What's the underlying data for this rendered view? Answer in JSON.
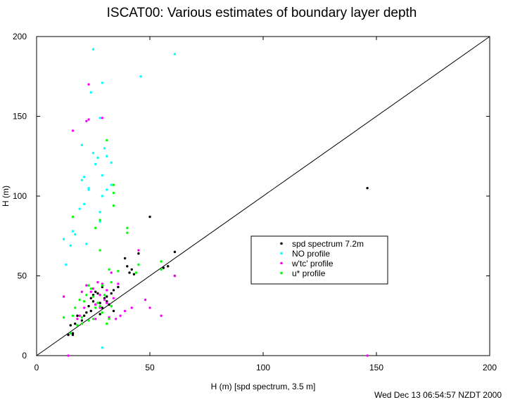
{
  "chart_data": {
    "type": "scatter",
    "title": "ISCAT00: Various estimates of boundary layer depth",
    "xlabel": "H (m) [spd spectrum, 3.5 m]",
    "ylabel": "H (m)",
    "xlim": [
      0,
      200
    ],
    "ylim": [
      0,
      200
    ],
    "xticks": [
      0,
      50,
      100,
      150,
      200
    ],
    "yticks": [
      0,
      50,
      100,
      150,
      200
    ],
    "reference_line": "y = x",
    "legend_position": "center-right",
    "series": [
      {
        "name": "spd spectrum 7.2m",
        "color": "#000000",
        "points": [
          [
            14,
            13
          ],
          [
            15,
            19
          ],
          [
            16,
            13
          ],
          [
            16,
            14
          ],
          [
            17,
            20
          ],
          [
            18,
            25
          ],
          [
            20,
            22
          ],
          [
            21,
            25
          ],
          [
            22,
            27
          ],
          [
            23,
            31
          ],
          [
            24,
            28
          ],
          [
            24,
            36
          ],
          [
            25,
            34
          ],
          [
            25,
            38
          ],
          [
            26,
            32
          ],
          [
            26,
            40
          ],
          [
            27,
            39
          ],
          [
            28,
            33
          ],
          [
            28,
            26
          ],
          [
            29,
            30
          ],
          [
            29,
            43
          ],
          [
            30,
            36
          ],
          [
            31,
            37
          ],
          [
            31,
            34
          ],
          [
            32,
            32
          ],
          [
            33,
            39
          ],
          [
            34,
            41
          ],
          [
            34,
            28
          ],
          [
            36,
            43
          ],
          [
            39,
            61
          ],
          [
            40,
            56
          ],
          [
            41,
            52
          ],
          [
            42,
            54
          ],
          [
            43,
            51
          ],
          [
            45,
            64
          ],
          [
            50,
            87
          ],
          [
            56,
            55
          ],
          [
            58,
            56
          ],
          [
            61,
            65
          ],
          [
            61,
            50
          ],
          [
            146,
            105
          ]
        ]
      },
      {
        "name": "NO profile",
        "color": "#00ffff",
        "points": [
          [
            12,
            73
          ],
          [
            13,
            57
          ],
          [
            15,
            69
          ],
          [
            16,
            78
          ],
          [
            17,
            76
          ],
          [
            19,
            92
          ],
          [
            20,
            110
          ],
          [
            20,
            132
          ],
          [
            21,
            95
          ],
          [
            21,
            112
          ],
          [
            22,
            70
          ],
          [
            22,
            147
          ],
          [
            23,
            104
          ],
          [
            23,
            105
          ],
          [
            24,
            165
          ],
          [
            25,
            192
          ],
          [
            25,
            127
          ],
          [
            26,
            120
          ],
          [
            27,
            124
          ],
          [
            28,
            149
          ],
          [
            28,
            84
          ],
          [
            28,
            90
          ],
          [
            29,
            171
          ],
          [
            29,
            5
          ],
          [
            29,
            100
          ],
          [
            29,
            113
          ],
          [
            30,
            130
          ],
          [
            31,
            125
          ],
          [
            31,
            104
          ],
          [
            33,
            121
          ],
          [
            33,
            107
          ],
          [
            46,
            175
          ],
          [
            61,
            189
          ]
        ]
      },
      {
        "name": "w'tc' profile",
        "color": "#ff00ff",
        "points": [
          [
            12,
            37
          ],
          [
            14,
            0
          ],
          [
            16,
            141
          ],
          [
            18,
            23
          ],
          [
            19,
            25
          ],
          [
            20,
            40
          ],
          [
            21,
            30
          ],
          [
            22,
            147
          ],
          [
            22,
            44
          ],
          [
            23,
            148
          ],
          [
            23,
            170
          ],
          [
            24,
            40
          ],
          [
            25,
            42
          ],
          [
            26,
            32
          ],
          [
            26,
            23
          ],
          [
            27,
            46
          ],
          [
            28,
            38
          ],
          [
            28,
            30
          ],
          [
            29,
            149
          ],
          [
            29,
            45
          ],
          [
            30,
            35
          ],
          [
            31,
            33
          ],
          [
            31,
            41
          ],
          [
            32,
            24
          ],
          [
            33,
            52
          ],
          [
            34,
            36
          ],
          [
            35,
            23
          ],
          [
            36,
            45
          ],
          [
            37,
            25
          ],
          [
            39,
            28
          ],
          [
            42,
            30
          ],
          [
            45,
            66
          ],
          [
            48,
            35
          ],
          [
            50,
            30
          ],
          [
            55,
            25
          ],
          [
            61,
            50
          ],
          [
            146,
            0
          ]
        ]
      },
      {
        "name": "u* profile",
        "color": "#00ff00",
        "points": [
          [
            12,
            24
          ],
          [
            15,
            14
          ],
          [
            16,
            25
          ],
          [
            16,
            87
          ],
          [
            17,
            30
          ],
          [
            18,
            19
          ],
          [
            19,
            35
          ],
          [
            20,
            20
          ],
          [
            20,
            24
          ],
          [
            21,
            34
          ],
          [
            22,
            38
          ],
          [
            23,
            44
          ],
          [
            23,
            22
          ],
          [
            24,
            42
          ],
          [
            25,
            37
          ],
          [
            25,
            23
          ],
          [
            26,
            30
          ],
          [
            26,
            80
          ],
          [
            27,
            33
          ],
          [
            28,
            66
          ],
          [
            28,
            85
          ],
          [
            28,
            31
          ],
          [
            29,
            27
          ],
          [
            29,
            44
          ],
          [
            30,
            38
          ],
          [
            31,
            135
          ],
          [
            31,
            20
          ],
          [
            32,
            54
          ],
          [
            32,
            23
          ],
          [
            33,
            31
          ],
          [
            33,
            46
          ],
          [
            34,
            107
          ],
          [
            34,
            94
          ],
          [
            34,
            102
          ],
          [
            36,
            53
          ],
          [
            40,
            80
          ],
          [
            40,
            77
          ],
          [
            44,
            52
          ],
          [
            45,
            57
          ],
          [
            55,
            59
          ],
          [
            55,
            54
          ]
        ]
      }
    ]
  },
  "footer_timestamp": "Wed Dec 13 06:54:57 NZDT 2000"
}
